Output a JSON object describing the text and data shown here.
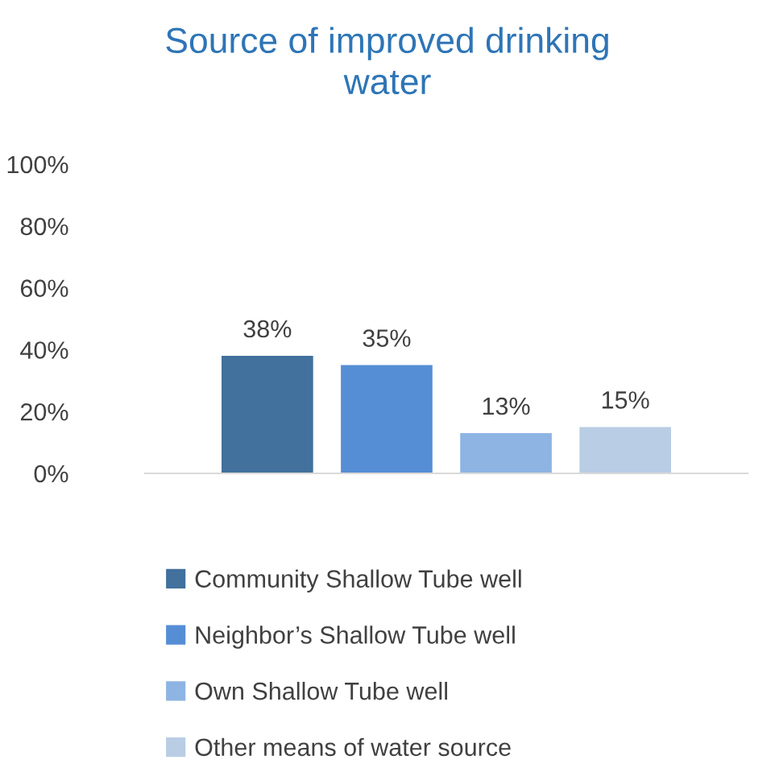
{
  "chart_data": {
    "type": "bar",
    "title": "Source of improved drinking\nwater",
    "categories": [
      null
    ],
    "series": [
      {
        "name": "Community Shallow Tube well",
        "color": "#41719c",
        "values": [
          38
        ],
        "value_labels": [
          "38%"
        ]
      },
      {
        "name": "Neighbor’s Shallow Tube well",
        "color": "#558ed5",
        "values": [
          35
        ],
        "value_labels": [
          "35%"
        ]
      },
      {
        "name": "Own Shallow Tube well",
        "color": "#8eb4e3",
        "values": [
          13
        ],
        "value_labels": [
          "13%"
        ]
      },
      {
        "name": "Other means of water source",
        "color": "#b9cde5",
        "values": [
          15
        ],
        "value_labels": [
          "15%"
        ]
      }
    ],
    "ylim": [
      0,
      100
    ],
    "yticks": [
      {
        "value": 0,
        "label": "0%"
      },
      {
        "value": 20,
        "label": "20%"
      },
      {
        "value": 40,
        "label": "40%"
      },
      {
        "value": 60,
        "label": "60%"
      },
      {
        "value": 80,
        "label": "80%"
      },
      {
        "value": 100,
        "label": "100%"
      }
    ],
    "grid": false,
    "legend": "bottom"
  }
}
